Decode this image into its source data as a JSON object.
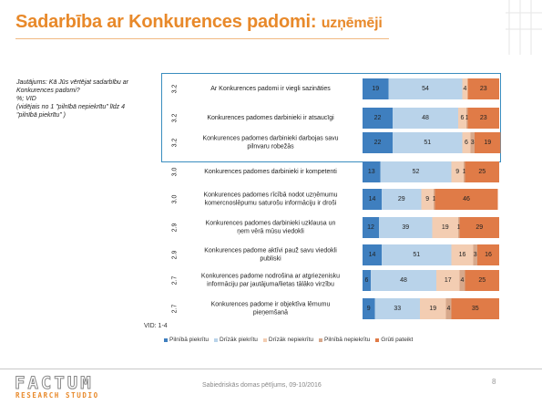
{
  "slide": {
    "title_main": "Sadarbība ar Konkurences padomi: ",
    "title_sub": "uzņēmēji",
    "question_lines": [
      "Jautājums: Kā Jūs vērtējat sadarbību ar",
      "Konkurences padomi?",
      "%; VID",
      "(vidējais no 1 \"pilnībā nepiekrītu\" līdz 4",
      "\"pilnībā piekrītu\" )"
    ],
    "vid_note": "VID: 1-4",
    "footer_text": "Sabiedriskās domas pētījums, 09-10/2016",
    "page_number": "8",
    "logo_main": "FACTUM",
    "logo_sub": "RESEARCH STUDIO",
    "title_color": "#e8892a"
  },
  "chart_data": {
    "type": "bar",
    "orientation": "horizontal",
    "stacked": true,
    "categories": [
      [
        "Ar Konkurences padomi ir viegli sazināties"
      ],
      [
        "Konkurences padomes darbinieki ir atsaucīgi"
      ],
      [
        "Konkurences padomes darbinieki darbojas savu",
        "pilnvaru robežās"
      ],
      [
        "Konkurences padomes darbinieki ir kompetenti"
      ],
      [
        "Konkurences padomes rīcībā nodot uzņēmumu",
        "komercnoslēpumu saturošu informāciju ir droši"
      ],
      [
        "Konkurences padomes darbinieki uzklausa un",
        "ņem vērā mūsu viedokli"
      ],
      [
        "Konkurences padome aktīvi pauž savu viedokli",
        "publiski"
      ],
      [
        "Konkurences padome nodrošina ar atgriezenisku",
        "informāciju par jautājuma/lietas tālāko virzību"
      ],
      [
        "Konkurences padome ir objektīva lēmumu",
        "pieņemšanā"
      ]
    ],
    "means": [
      "3.2",
      "3.2",
      "3.2",
      "3.0",
      "3.0",
      "2.9",
      "2.9",
      "2.7",
      "2.7"
    ],
    "series": [
      {
        "name": "Pilnībā piekrītu",
        "color": "#3f7fbf",
        "values": [
          19,
          22,
          22,
          13,
          14,
          12,
          14,
          6,
          9
        ]
      },
      {
        "name": "Drīzāk piekrītu",
        "color": "#b9d3ea",
        "values": [
          54,
          48,
          51,
          52,
          29,
          39,
          51,
          48,
          33
        ]
      },
      {
        "name": "Drīzāk nepiekrītu",
        "color": "#f3cdb2",
        "values": [
          4,
          6,
          6,
          9,
          9,
          19,
          16,
          17,
          19
        ]
      },
      {
        "name": "Pilnībā nepiekrītu",
        "color": "#d7a88b",
        "values": [
          0,
          1,
          3,
          1,
          1,
          1,
          3,
          4,
          4
        ]
      },
      {
        "name": "Grūti pateikt",
        "color": "#e07b47",
        "values": [
          23,
          23,
          19,
          25,
          46,
          29,
          16,
          25,
          35
        ]
      }
    ],
    "xlim": [
      0,
      100
    ],
    "grid": false,
    "legend_position": "bottom"
  }
}
